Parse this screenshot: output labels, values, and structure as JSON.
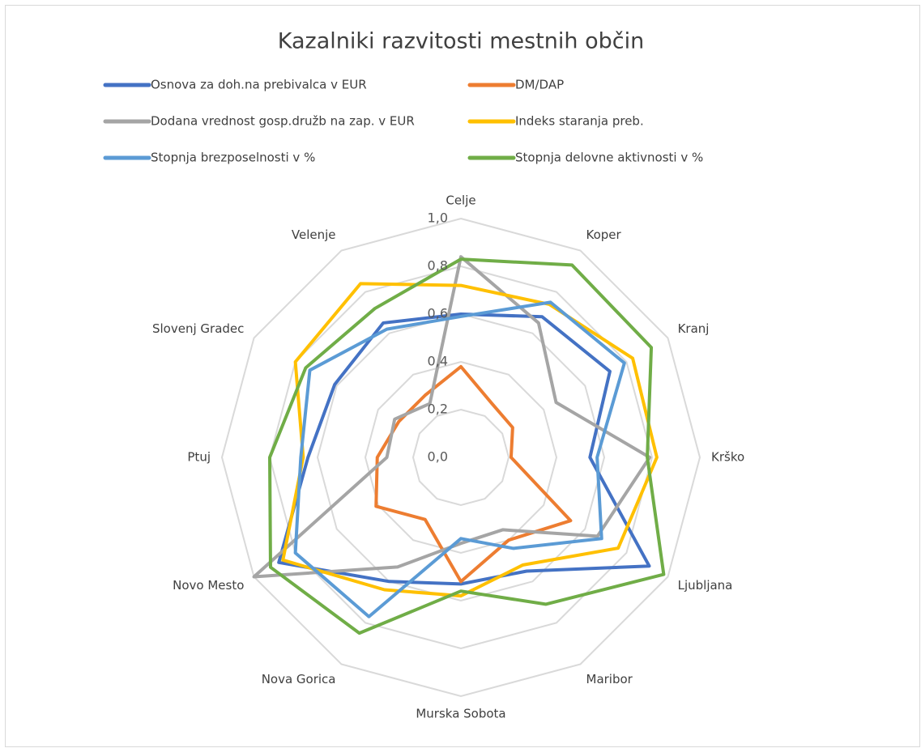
{
  "chart_data": {
    "type": "radar",
    "title": "Kazalniki razvitosti mestnih občin",
    "categories": [
      "Celje",
      "Koper",
      "Kranj",
      "Krško",
      "Ljubljana",
      "Maribor",
      "Murska Sobota",
      "Nova Gorica",
      "Novo Mesto",
      "Ptuj",
      "Slovenj Gradec",
      "Velenje"
    ],
    "ylim": [
      0,
      1
    ],
    "yticks": [
      {
        "value": 0,
        "label": "0,0"
      },
      {
        "value": 0.2,
        "label": "0,2"
      },
      {
        "value": 0.4,
        "label": "0,4"
      },
      {
        "value": 0.6,
        "label": "0,6"
      },
      {
        "value": 0.8,
        "label": "0,8"
      },
      {
        "value": 1,
        "label": "1,0"
      }
    ],
    "grid": true,
    "legend": "top",
    "series": [
      {
        "name": "Osnova za doh.na prebivalca v EUR",
        "color": "#4472c4",
        "values": [
          0.6,
          0.68,
          0.72,
          0.54,
          0.91,
          0.55,
          0.53,
          0.6,
          0.88,
          0.64,
          0.61,
          0.65
        ]
      },
      {
        "name": "DM/DAP",
        "color": "#ed7d31",
        "values": [
          0.38,
          0.26,
          0.25,
          0.21,
          0.53,
          0.4,
          0.52,
          0.3,
          0.41,
          0.35,
          0.3,
          0.3
        ]
      },
      {
        "name": "Dodana vrednost gosp.družb na zap. v EUR",
        "color": "#a5a5a5",
        "values": [
          0.84,
          0.65,
          0.46,
          0.79,
          0.66,
          0.35,
          0.36,
          0.53,
          1.0,
          0.31,
          0.32,
          0.26
        ]
      },
      {
        "name": "Indeks staranja preb.",
        "color": "#ffc000",
        "values": [
          0.72,
          0.74,
          0.83,
          0.82,
          0.76,
          0.52,
          0.58,
          0.64,
          0.86,
          0.66,
          0.8,
          0.84
        ]
      },
      {
        "name": "Stopnja brezposelnosti v %",
        "color": "#5b9bd5",
        "values": [
          0.59,
          0.75,
          0.79,
          0.57,
          0.68,
          0.44,
          0.34,
          0.77,
          0.8,
          0.67,
          0.73,
          0.62
        ]
      },
      {
        "name": "Stopnja delovne aktivnosti v %",
        "color": "#70ad47",
        "values": [
          0.83,
          0.93,
          0.92,
          0.78,
          0.98,
          0.71,
          0.56,
          0.85,
          0.92,
          0.8,
          0.75,
          0.72
        ]
      }
    ]
  }
}
